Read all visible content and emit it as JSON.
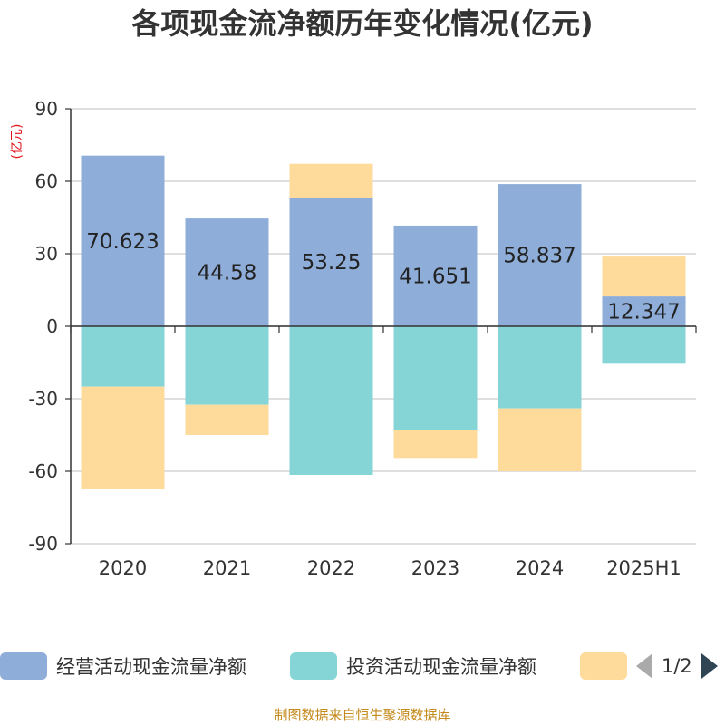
{
  "chart_data": {
    "type": "bar",
    "stacked": true,
    "title": "各项现金流净额历年变化情况(亿元)",
    "ylabel": "(亿元)",
    "ylim": [
      -90,
      90
    ],
    "yticks": [
      90,
      60,
      30,
      0,
      -30,
      -60,
      -90
    ],
    "grid": true,
    "legend_position": "bottom",
    "categories": [
      "2020",
      "2021",
      "2022",
      "2023",
      "2024",
      "2025H1"
    ],
    "series": [
      {
        "name": "经营活动现金流量净额",
        "color": "#8eadd9",
        "values": [
          70.623,
          44.58,
          53.25,
          41.651,
          58.837,
          12.347
        ],
        "labels": [
          "70.623",
          "44.58",
          "53.25",
          "41.651",
          "58.837",
          "12.347"
        ]
      },
      {
        "name": "投资活动现金流量净额",
        "color": "#86d5d6",
        "values": [
          -25,
          -32.5,
          -61.5,
          -43,
          -34,
          -15.5
        ]
      },
      {
        "color": "#fedb9b",
        "values": [
          -42.5,
          -12.5,
          14,
          -11.5,
          -26,
          16.5
        ]
      }
    ]
  },
  "legend": {
    "page": "1/2"
  },
  "footer": {
    "source": "制图数据来自恒生聚源数据库"
  }
}
